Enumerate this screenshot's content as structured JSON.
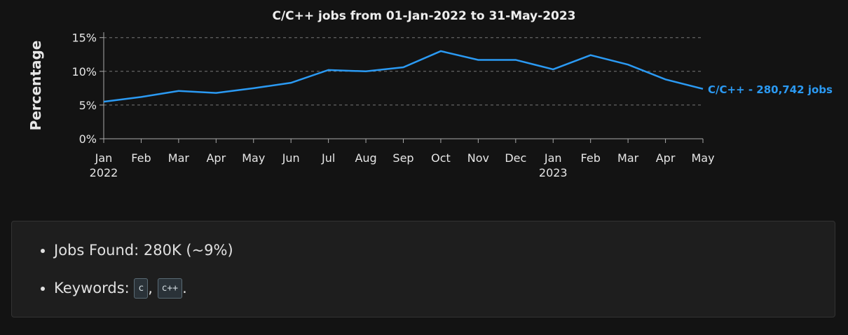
{
  "chart_data": {
    "type": "line",
    "title": "C/C++ jobs from 01-Jan-2022 to 31-May-2023",
    "y_label": "Percentage",
    "categories": [
      "Jan",
      "Feb",
      "Mar",
      "Apr",
      "May",
      "Jun",
      "Jul",
      "Aug",
      "Sep",
      "Oct",
      "Nov",
      "Dec",
      "Jan",
      "Feb",
      "Mar",
      "Apr",
      "May"
    ],
    "category_years": [
      "2022",
      null,
      null,
      null,
      null,
      null,
      null,
      null,
      null,
      null,
      null,
      null,
      "2023",
      null,
      null,
      null,
      null
    ],
    "series": [
      {
        "name": "C/C++ - 280,742 jobs",
        "color": "#2b9af3",
        "values": [
          5.5,
          6.2,
          7.1,
          6.8,
          7.5,
          8.3,
          10.2,
          10.0,
          10.6,
          13.0,
          11.7,
          11.7,
          10.3,
          12.4,
          11.0,
          8.8,
          7.4
        ]
      }
    ],
    "ylim": [
      0,
      15.8
    ],
    "yticks": [
      {
        "value": 0,
        "label": "0%"
      },
      {
        "value": 5,
        "label": "5%"
      },
      {
        "value": 10,
        "label": "10%"
      },
      {
        "value": 15,
        "label": "15%"
      }
    ],
    "grid": true
  },
  "summary": {
    "jobs_found": "Jobs Found: 280K (~9%)",
    "keywords_label": "Keywords:",
    "keywords": [
      "c",
      "c++"
    ],
    "keyword_separator": ",",
    "keyword_end": "."
  }
}
